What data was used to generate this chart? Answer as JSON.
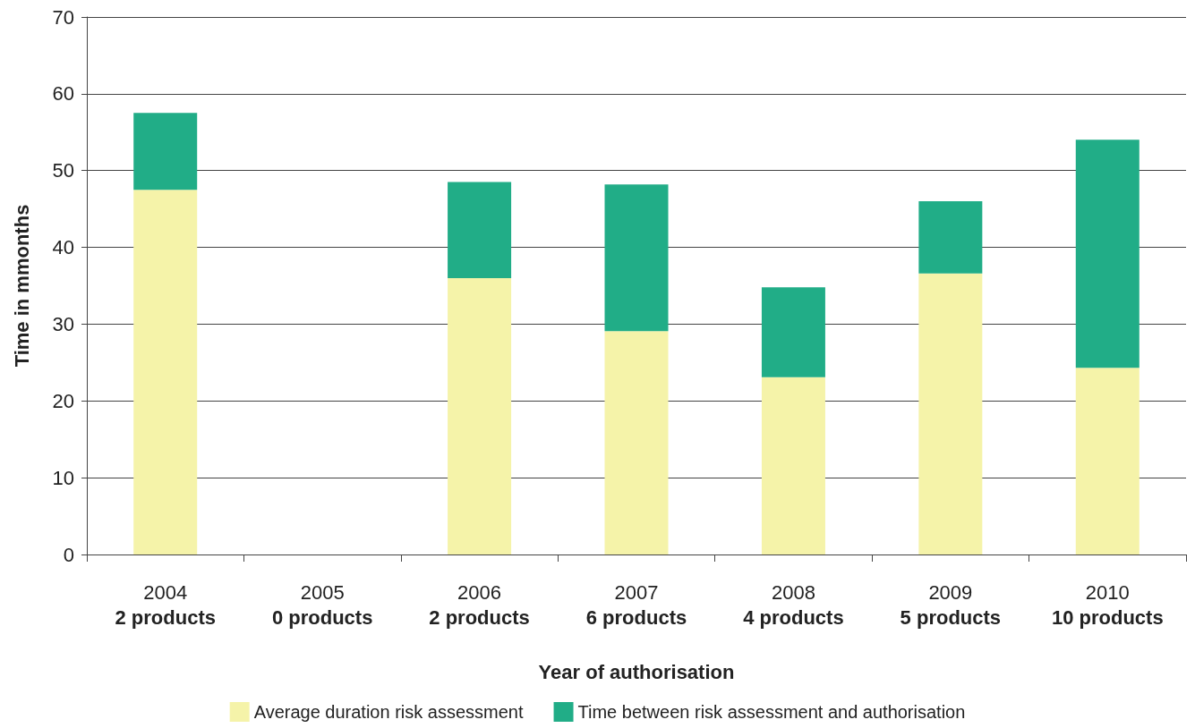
{
  "chart_data": {
    "type": "bar",
    "stacked": true,
    "xlabel": "Year of authorisation",
    "ylabel": "Time in mmonths",
    "categories": [
      "2004\n2 products",
      "2005\n0 products",
      "2006\n2 products",
      "2007\n6 products",
      "2008\n4 products",
      "2009\n5 products",
      "2010\n10 products"
    ],
    "series": [
      {
        "name": "Average duration risk assessment",
        "color": "#f5f3a9",
        "values": [
          47.5,
          null,
          36.0,
          29.1,
          23.1,
          36.6,
          24.3
        ]
      },
      {
        "name": "Time between risk assessment and authorisation",
        "color": "#21ad87",
        "values": [
          10.0,
          null,
          12.5,
          19.1,
          11.7,
          9.4,
          29.7
        ]
      }
    ],
    "ylim": [
      0,
      70
    ],
    "yticks": [
      0,
      10,
      20,
      30,
      40,
      50,
      60,
      70
    ],
    "grid": "y",
    "legend": "bottom"
  }
}
